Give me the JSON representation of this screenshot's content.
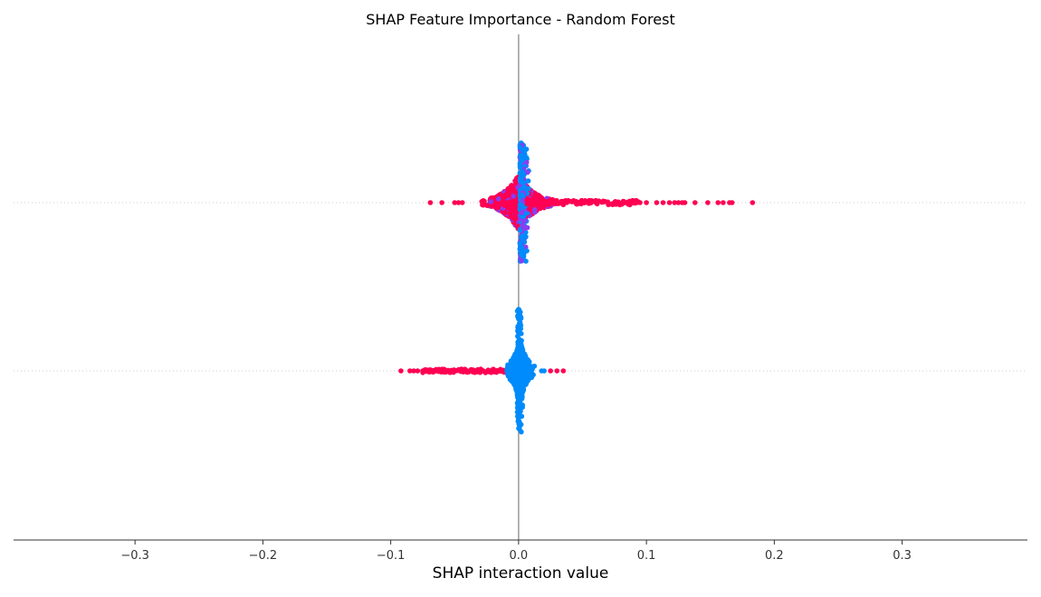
{
  "chart_data": {
    "type": "scatter",
    "subtype": "beeswarm",
    "title": "SHAP Feature Importance - Random Forest",
    "xlabel": "SHAP interaction value",
    "ylabel": "",
    "xlim": [
      -0.395,
      0.398
    ],
    "xticks": [
      -0.3,
      -0.2,
      -0.1,
      0.0,
      0.1,
      0.2,
      0.3
    ],
    "xtick_labels": [
      "−0.3",
      "−0.2",
      "−0.1",
      "0.0",
      "0.1",
      "0.2",
      "0.3"
    ],
    "rows": 2,
    "grid": false,
    "colors": {
      "high": "#ff0052",
      "low": "#008bfb",
      "mid": "#8a3df0",
      "zero_line": "#999999",
      "axis": "#333333"
    },
    "series": [
      {
        "row": 0,
        "dominant_color": "high",
        "min": -0.069,
        "max": 0.183,
        "tail_points_high": [
          0.183,
          0.167,
          0.165,
          0.16,
          0.156,
          0.148,
          0.138,
          0.13,
          0.128,
          0.125,
          0.122,
          0.118,
          0.113,
          0.108,
          0.1,
          0.095,
          0.09
        ],
        "tail_points_low": [
          -0.069,
          -0.06,
          -0.05,
          -0.047,
          -0.044
        ]
      },
      {
        "row": 1,
        "dominant_color": "low",
        "min": -0.092,
        "max": 0.035,
        "tail_points_high": [
          -0.092,
          -0.085,
          -0.082,
          -0.079,
          -0.075,
          0.03,
          0.035,
          0.025
        ],
        "tail_points_low": [
          0.018,
          0.02
        ]
      }
    ]
  }
}
